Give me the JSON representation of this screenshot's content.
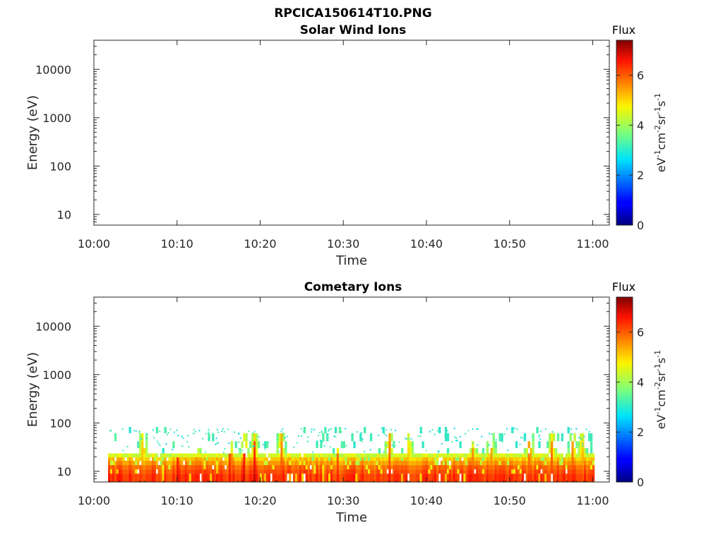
{
  "figure_title": "RPCICA150614T10.PNG",
  "chart_data": [
    {
      "type": "heatmap",
      "title": "Solar Wind Ions",
      "xlabel": "Time",
      "ylabel": "Energy (eV)",
      "x_ticks": [
        "10:00",
        "10:10",
        "10:20",
        "10:30",
        "10:40",
        "10:50",
        "11:00"
      ],
      "x_range_minutes": [
        0,
        62
      ],
      "y_scale": "log",
      "y_ticks": [
        "10",
        "100",
        "1000",
        "10000"
      ],
      "y_range": [
        6,
        40000
      ],
      "colorbar": {
        "title": "Flux",
        "label": "eV-1cm-2sr-1s-1",
        "ticks": [
          "0",
          "2",
          "4",
          "6"
        ],
        "range": [
          0,
          7.4
        ],
        "colormap": "jet"
      },
      "data": []
    },
    {
      "type": "heatmap",
      "title": "Cometary Ions",
      "xlabel": "Time",
      "ylabel": "Energy (eV)",
      "x_ticks": [
        "10:00",
        "10:10",
        "10:20",
        "10:30",
        "10:40",
        "10:50",
        "11:00"
      ],
      "x_range_minutes": [
        0,
        62
      ],
      "y_scale": "log",
      "y_ticks": [
        "10",
        "100",
        "1000",
        "10000"
      ],
      "y_range": [
        6,
        40000
      ],
      "colorbar": {
        "title": "Flux",
        "label": "eV-1cm-2sr-1s-1",
        "ticks": [
          "0",
          "2",
          "4",
          "6"
        ],
        "range": [
          0,
          7.4
        ],
        "colormap": "jet"
      },
      "data_coverage_minutes": [
        1.7,
        60
      ],
      "energy_extent_eV": [
        6,
        80
      ],
      "intensity_profile": [
        {
          "energy_eV": 8,
          "flux": 6.3
        },
        {
          "energy_eV": 10,
          "flux": 6.1
        },
        {
          "energy_eV": 12,
          "flux": 5.9
        },
        {
          "energy_eV": 15,
          "flux": 5.5
        },
        {
          "energy_eV": 18,
          "flux": 5.1
        },
        {
          "energy_eV": 21,
          "flux": 4.4
        },
        {
          "energy_eV": 26,
          "flux": 3.6
        },
        {
          "energy_eV": 35,
          "flux": 3.2
        },
        {
          "energy_eV": 50,
          "flux": 3.0
        },
        {
          "energy_eV": 75,
          "flux": 2.9
        }
      ],
      "bursts": [
        {
          "t": 5.8,
          "top_eV": 80,
          "flux": 6.4
        },
        {
          "t": 10.0,
          "top_eV": 25,
          "flux": 7.1
        },
        {
          "t": 12.3,
          "top_eV": 30,
          "flux": 6.6
        },
        {
          "t": 16.3,
          "top_eV": 40,
          "flux": 7.4
        },
        {
          "t": 18.0,
          "top_eV": 60,
          "flux": 7.2
        },
        {
          "t": 19.2,
          "top_eV": 70,
          "flux": 6.9
        },
        {
          "t": 22.4,
          "top_eV": 80,
          "flux": 6.7
        },
        {
          "t": 29.2,
          "top_eV": 30,
          "flux": 6.3
        },
        {
          "t": 35.4,
          "top_eV": 80,
          "flux": 6.6
        },
        {
          "t": 37.8,
          "top_eV": 55,
          "flux": 6.3
        },
        {
          "t": 45.5,
          "top_eV": 40,
          "flux": 6.4
        },
        {
          "t": 47.6,
          "top_eV": 70,
          "flux": 6.7
        },
        {
          "t": 52.3,
          "top_eV": 80,
          "flux": 7.0
        },
        {
          "t": 55.0,
          "top_eV": 70,
          "flux": 6.7
        },
        {
          "t": 57.5,
          "top_eV": 70,
          "flux": 6.5
        },
        {
          "t": 58.6,
          "top_eV": 60,
          "flux": 6.6
        }
      ]
    }
  ]
}
